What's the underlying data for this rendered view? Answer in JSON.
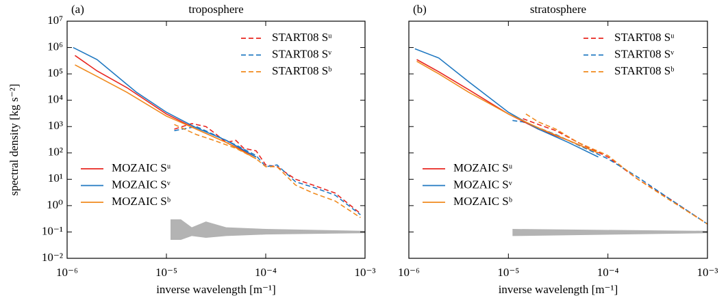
{
  "chart_data": [
    {
      "type": "line",
      "panel": "(a)",
      "title": "troposphere",
      "xlabel": "inverse wavelength [m⁻¹]",
      "ylabel": "spectral density [kg s⁻²]",
      "xscale": "log",
      "yscale": "log",
      "xlim": [
        1e-06,
        0.001
      ],
      "ylim": [
        0.01,
        10000000.0
      ],
      "ytick_labels": true,
      "xticks": [
        {
          "value": 1e-06,
          "label": "10⁻⁶"
        },
        {
          "value": 1e-05,
          "label": "10⁻⁵"
        },
        {
          "value": 0.0001,
          "label": "10⁻⁴"
        },
        {
          "value": 0.001,
          "label": "10⁻³"
        }
      ],
      "yticks": [
        {
          "value": 0.01,
          "label": "10⁻²"
        },
        {
          "value": 0.1,
          "label": "10⁻¹"
        },
        {
          "value": 1,
          "label": "10⁰"
        },
        {
          "value": 10,
          "label": "10¹"
        },
        {
          "value": 100,
          "label": "10²"
        },
        {
          "value": 1000,
          "label": "10³"
        },
        {
          "value": 10000,
          "label": "10⁴"
        },
        {
          "value": 100000,
          "label": "10⁵"
        },
        {
          "value": 1000000,
          "label": "10⁶"
        },
        {
          "value": 10000000,
          "label": "10⁷"
        }
      ],
      "series": [
        {
          "name": "START08 Sᵘ",
          "color": "#e8251f",
          "style": "dashed",
          "legend": "upper right",
          "x": [
            1.2e-05,
            1.8e-05,
            2.5e-05,
            3e-05,
            4e-05,
            5e-05,
            6e-05,
            8e-05,
            0.0001,
            0.00013,
            0.0002,
            0.0003,
            0.0005,
            0.0009
          ],
          "values": [
            800,
            1300,
            1000,
            600,
            250,
            300,
            150,
            120,
            35,
            30,
            10,
            6,
            3,
            0.5
          ]
        },
        {
          "name": "START08 Sᵛ",
          "color": "#1f78c1",
          "style": "dashed",
          "legend": "upper right",
          "x": [
            1.2e-05,
            2e-05,
            3e-05,
            5e-05,
            8e-05,
            0.0001,
            0.00013,
            0.0002,
            0.0003,
            0.0005,
            0.0009
          ],
          "values": [
            700,
            1000,
            500,
            200,
            80,
            30,
            35,
            8,
            5,
            2.5,
            0.45
          ]
        },
        {
          "name": "START08 Sᵇ",
          "color": "#f08a1d",
          "style": "dashed",
          "legend": "upper right",
          "x": [
            1.2e-05,
            2e-05,
            3e-05,
            5e-05,
            8e-05,
            0.0001,
            0.00013,
            0.0002,
            0.0003,
            0.0005,
            0.0009
          ],
          "values": [
            1200,
            500,
            300,
            150,
            60,
            30,
            30,
            6,
            3,
            1.5,
            0.35
          ]
        },
        {
          "name": "MOZAIC Sᵘ",
          "color": "#e8251f",
          "style": "solid",
          "legend": "lower left",
          "x": [
            1.2e-06,
            2e-06,
            4e-06,
            1e-05,
            2e-05,
            4e-05,
            8e-05
          ],
          "values": [
            500000,
            130000,
            30000,
            3000,
            800,
            250,
            70
          ]
        },
        {
          "name": "MOZAIC Sᵛ",
          "color": "#1f78c1",
          "style": "solid",
          "legend": "lower left",
          "x": [
            1.15e-06,
            2e-06,
            4e-06,
            5e-06,
            1e-05,
            2e-05,
            4e-05,
            8e-05
          ],
          "values": [
            1000000,
            350000,
            40000,
            20000,
            3500,
            900,
            300,
            70
          ]
        },
        {
          "name": "MOZAIC Sᵇ",
          "color": "#f08a1d",
          "style": "solid",
          "legend": "lower left",
          "x": [
            1.2e-06,
            2e-06,
            4e-06,
            1e-05,
            2e-05,
            4e-05,
            8e-05
          ],
          "values": [
            220000,
            80000,
            20000,
            2500,
            800,
            250,
            60
          ]
        }
      ],
      "band": {
        "color": "#b3b3b3",
        "x": [
          1.1e-05,
          1.4e-05,
          1.8e-05,
          2.5e-05,
          4e-05,
          0.0001,
          0.001
        ],
        "upper": [
          0.3,
          0.3,
          0.15,
          0.25,
          0.15,
          0.13,
          0.11
        ],
        "lower": [
          0.05,
          0.05,
          0.07,
          0.06,
          0.07,
          0.08,
          0.09
        ]
      }
    },
    {
      "type": "line",
      "panel": "(b)",
      "title": "stratosphere",
      "xlabel": "inverse wavelength [m⁻¹]",
      "xscale": "log",
      "yscale": "log",
      "xlim": [
        1e-06,
        0.001
      ],
      "ylim": [
        0.01,
        10000000.0
      ],
      "ytick_labels": false,
      "xticks": [
        {
          "value": 1e-06,
          "label": "10⁻⁶"
        },
        {
          "value": 1e-05,
          "label": "10⁻⁵"
        },
        {
          "value": 0.0001,
          "label": "10⁻⁴"
        },
        {
          "value": 0.001,
          "label": "10⁻³"
        }
      ],
      "yticks": [
        0.01,
        0.1,
        1,
        10,
        100,
        1000,
        10000,
        100000,
        1000000,
        10000000
      ],
      "series": [
        {
          "name": "START08 Sᵘ",
          "color": "#e8251f",
          "style": "dashed",
          "legend": "upper right",
          "x": [
            1.4e-05,
            2e-05,
            3e-05,
            5e-05,
            0.0001,
            0.0002,
            0.0004,
            0.001
          ],
          "values": [
            2000,
            1200,
            700,
            250,
            70,
            10,
            2,
            0.2
          ]
        },
        {
          "name": "START08 Sᵛ",
          "color": "#1f78c1",
          "style": "dashed",
          "legend": "upper right",
          "x": [
            1.1e-05,
            1.4e-05,
            2e-05,
            3e-05,
            5e-05,
            0.0001,
            0.0002,
            0.0004,
            0.001
          ],
          "values": [
            1700,
            1500,
            900,
            500,
            200,
            60,
            12,
            2,
            0.2
          ]
        },
        {
          "name": "START08 Sᵇ",
          "color": "#f08a1d",
          "style": "dashed",
          "legend": "upper right",
          "x": [
            1.5e-05,
            2e-05,
            3e-05,
            5e-05,
            0.0001,
            0.0002,
            0.0004,
            0.001
          ],
          "values": [
            3000,
            1500,
            800,
            250,
            80,
            10,
            1.8,
            0.2
          ]
        },
        {
          "name": "MOZAIC Sᵘ",
          "color": "#e8251f",
          "style": "solid",
          "legend": "lower left",
          "x": [
            1.2e-06,
            2e-06,
            4e-06,
            1e-05,
            2e-05,
            4e-05,
            8e-05
          ],
          "values": [
            350000,
            120000,
            25000,
            3000,
            800,
            300,
            100
          ]
        },
        {
          "name": "MOZAIC Sᵛ",
          "color": "#1f78c1",
          "style": "solid",
          "legend": "lower left",
          "x": [
            1.15e-06,
            2e-06,
            4e-06,
            1e-05,
            2e-05,
            4e-05,
            8e-05
          ],
          "values": [
            900000,
            400000,
            50000,
            3500,
            800,
            250,
            70
          ]
        },
        {
          "name": "MOZAIC Sᵇ",
          "color": "#f08a1d",
          "style": "solid",
          "legend": "lower left",
          "x": [
            1.2e-06,
            2e-06,
            4e-06,
            1e-05,
            2e-05,
            4e-05,
            8e-05
          ],
          "values": [
            300000,
            100000,
            20000,
            3000,
            900,
            300,
            100
          ]
        }
      ],
      "band": {
        "color": "#b3b3b3",
        "x": [
          1.1e-05,
          0.001
        ],
        "upper": [
          0.13,
          0.11
        ],
        "lower": [
          0.07,
          0.09
        ]
      }
    }
  ]
}
